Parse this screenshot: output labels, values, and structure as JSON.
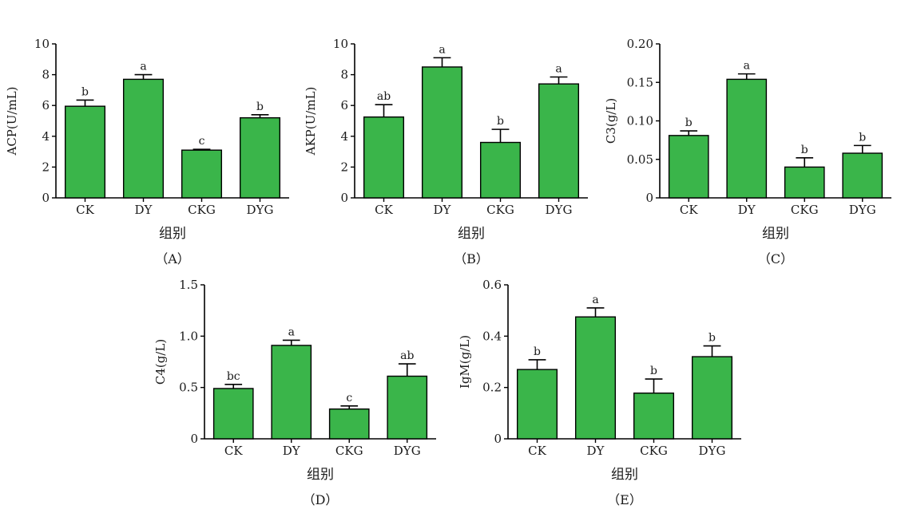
{
  "colors": {
    "bar": "#3ab54a",
    "bar_edge": "#000000",
    "axis": "#000000"
  },
  "chart_data": [
    {
      "type": "bar",
      "panel_label": "（A）",
      "ylabel": "ACP(U/mL)",
      "xlabel": "组别",
      "categories": [
        "CK",
        "DY",
        "CKG",
        "DYG"
      ],
      "values": [
        5.95,
        7.7,
        3.1,
        5.2
      ],
      "errors": [
        0.4,
        0.3,
        0.05,
        0.2
      ],
      "significance": [
        "b",
        "a",
        "c",
        "b"
      ],
      "ylim": [
        0,
        10
      ],
      "yticks": [
        0,
        2,
        4,
        6,
        8,
        10
      ],
      "ytick_labels": [
        "0",
        "2",
        "4",
        "6",
        "8",
        "10"
      ]
    },
    {
      "type": "bar",
      "panel_label": "（B）",
      "ylabel": "AKP(U/mL)",
      "xlabel": "组别",
      "categories": [
        "CK",
        "DY",
        "CKG",
        "DYG"
      ],
      "values": [
        5.25,
        8.5,
        3.6,
        7.4
      ],
      "errors": [
        0.8,
        0.6,
        0.85,
        0.45
      ],
      "significance": [
        "ab",
        "a",
        "b",
        "a"
      ],
      "ylim": [
        0,
        10
      ],
      "yticks": [
        0,
        2,
        4,
        6,
        8,
        10
      ],
      "ytick_labels": [
        "0",
        "2",
        "4",
        "6",
        "8",
        "10"
      ]
    },
    {
      "type": "bar",
      "panel_label": "（C）",
      "ylabel": "C3(g/L)",
      "xlabel": "组别",
      "categories": [
        "CK",
        "DY",
        "CKG",
        "DYG"
      ],
      "values": [
        0.081,
        0.154,
        0.04,
        0.058
      ],
      "errors": [
        0.006,
        0.007,
        0.012,
        0.01
      ],
      "significance": [
        "b",
        "a",
        "b",
        "b"
      ],
      "ylim": [
        0,
        0.2
      ],
      "yticks": [
        0,
        0.05,
        0.1,
        0.15,
        0.2
      ],
      "ytick_labels": [
        "0",
        "0.05",
        "0.10",
        "0.15",
        "0.20"
      ]
    },
    {
      "type": "bar",
      "panel_label": "（D）",
      "ylabel": "C4(g/L)",
      "xlabel": "组别",
      "categories": [
        "CK",
        "DY",
        "CKG",
        "DYG"
      ],
      "values": [
        0.49,
        0.91,
        0.29,
        0.61
      ],
      "errors": [
        0.04,
        0.05,
        0.03,
        0.12
      ],
      "significance": [
        "bc",
        "a",
        "c",
        "ab"
      ],
      "ylim": [
        0,
        1.5
      ],
      "yticks": [
        0,
        0.5,
        1.0,
        1.5
      ],
      "ytick_labels": [
        "0",
        "0.5",
        "1.0",
        "1.5"
      ]
    },
    {
      "type": "bar",
      "panel_label": "（E）",
      "ylabel": "IgM(g/L)",
      "xlabel": "组别",
      "categories": [
        "CK",
        "DY",
        "CKG",
        "DYG"
      ],
      "values": [
        0.27,
        0.475,
        0.178,
        0.32
      ],
      "errors": [
        0.038,
        0.035,
        0.055,
        0.042
      ],
      "significance": [
        "b",
        "a",
        "b",
        "b"
      ],
      "ylim": [
        0,
        0.6
      ],
      "yticks": [
        0,
        0.2,
        0.4,
        0.6
      ],
      "ytick_labels": [
        "0",
        "0.2",
        "0.4",
        "0.6"
      ]
    }
  ]
}
